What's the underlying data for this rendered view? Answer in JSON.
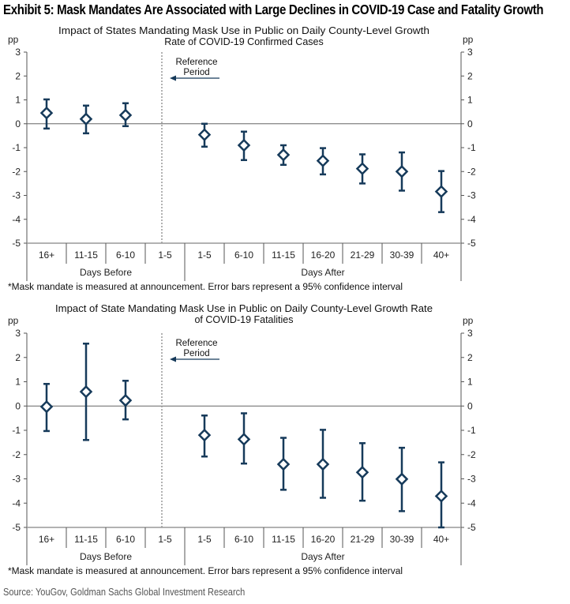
{
  "exhibit_title": "Exhibit 5: Mask Mandates Are Associated with Large Declines in COVID-19 Case and Fatality Growth",
  "source": "Source: YouGov, Goldman Sachs Global Investment Research",
  "colors": {
    "marker": "#163a5a",
    "axis": "#555555",
    "ref_line": "#999999"
  },
  "chart_data": [
    {
      "type": "scatter",
      "subtype": "point-with-error-bars",
      "title_lines": [
        "Impact of States Mandating Mask Use in Public on Daily County-Level Growth",
        "Rate of COVID-19 Confirmed Cases"
      ],
      "ylabel_left": "pp",
      "ylabel_right": "pp",
      "ylim": [
        -5,
        3
      ],
      "yticks": [
        3,
        2,
        1,
        0,
        -1,
        -2,
        -3,
        -4,
        -5
      ],
      "categories": [
        "16+",
        "11-15",
        "6-10",
        "1-5",
        "1-5",
        "6-10",
        "11-15",
        "16-20",
        "21-29",
        "30-39",
        "40+"
      ],
      "groups": [
        {
          "label": "Days Before",
          "count": 4
        },
        {
          "label": "Days After",
          "count": 7
        }
      ],
      "reference_category_index": 3,
      "reference_label_lines": [
        "Reference",
        "Period"
      ],
      "values": [
        0.45,
        0.2,
        0.36,
        null,
        -0.46,
        -0.9,
        -1.3,
        -1.55,
        -1.88,
        -2.0,
        -2.84
      ],
      "ci_upper": [
        1.02,
        0.76,
        0.86,
        null,
        0.0,
        -0.33,
        -0.9,
        -1.02,
        -1.28,
        -1.2,
        -1.98
      ],
      "ci_lower": [
        -0.2,
        -0.4,
        -0.1,
        null,
        -0.96,
        -1.52,
        -1.72,
        -2.12,
        -2.5,
        -2.8,
        -3.7
      ],
      "footnote": "*Mask mandate is measured at announcement. Error bars represent a 95% confidence interval",
      "grid": false,
      "legend": "none"
    },
    {
      "type": "scatter",
      "subtype": "point-with-error-bars",
      "title_lines": [
        "Impact of State Mandating Mask Use in Public on Daily County-Level Growth Rate",
        "of COVID-19 Fatalities"
      ],
      "ylabel_left": "pp",
      "ylabel_right": "pp",
      "ylim": [
        -5,
        3
      ],
      "yticks": [
        3,
        2,
        1,
        0,
        -1,
        -2,
        -3,
        -4,
        -5
      ],
      "categories": [
        "16+",
        "11-15",
        "6-10",
        "1-5",
        "1-5",
        "6-10",
        "11-15",
        "16-20",
        "21-29",
        "30-39",
        "40+"
      ],
      "groups": [
        {
          "label": "Days Before",
          "count": 4
        },
        {
          "label": "Days After",
          "count": 7
        }
      ],
      "reference_category_index": 3,
      "reference_label_lines": [
        "Reference",
        "Period"
      ],
      "values": [
        -0.03,
        0.59,
        0.23,
        null,
        -1.2,
        -1.37,
        -2.4,
        -2.4,
        -2.73,
        -3.01,
        -3.71
      ],
      "ci_upper": [
        0.91,
        2.57,
        1.04,
        null,
        -0.39,
        -0.3,
        -1.31,
        -0.98,
        -1.53,
        -1.72,
        -2.32
      ],
      "ci_lower": [
        -1.03,
        -1.4,
        -0.55,
        null,
        -2.08,
        -2.37,
        -3.45,
        -3.78,
        -3.9,
        -4.33,
        -5.0
      ],
      "footnote": "*Mask mandate is measured at announcement. Error bars represent a 95% confidence interval",
      "grid": false,
      "legend": "none"
    }
  ]
}
